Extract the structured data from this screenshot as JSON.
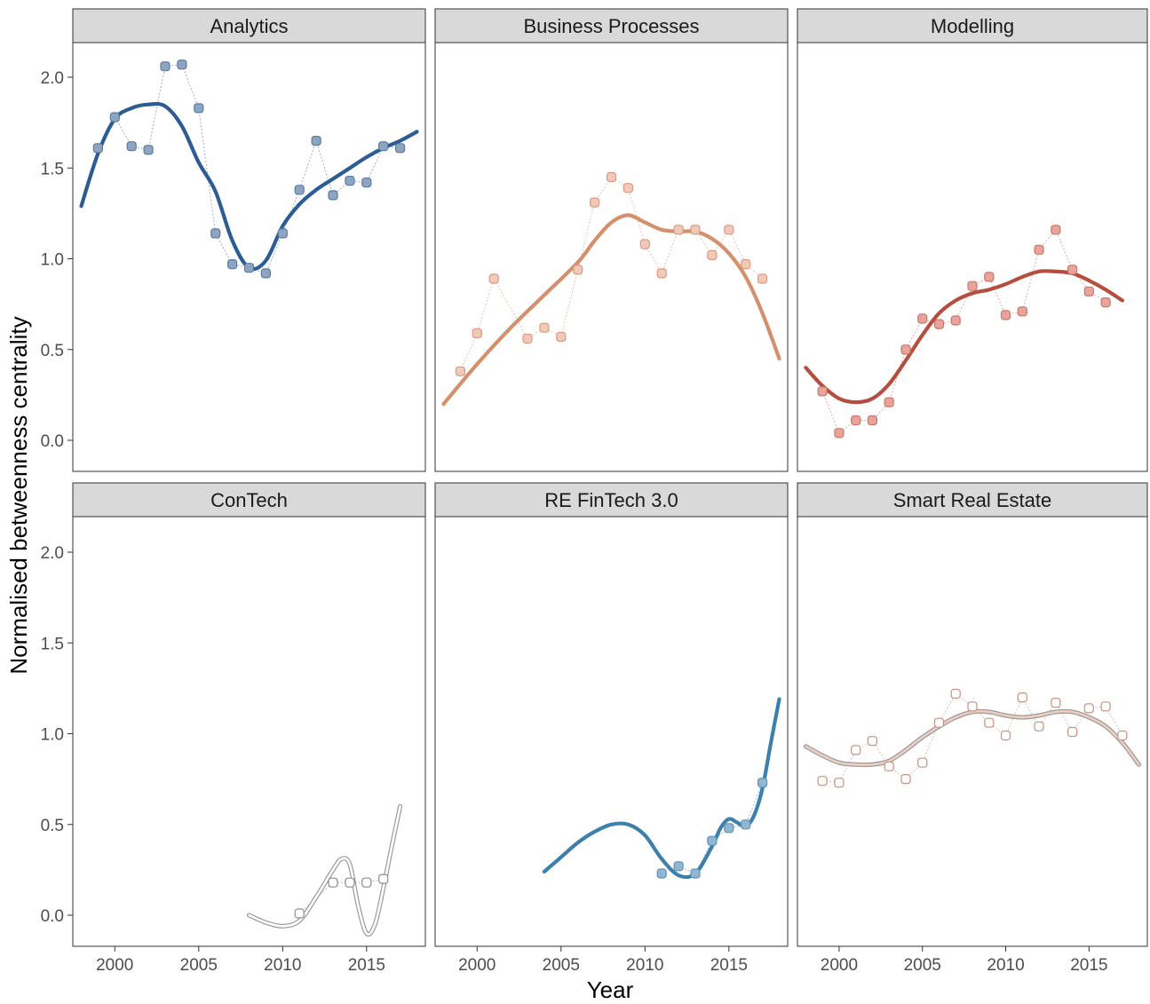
{
  "chart_data": {
    "type": "scatter",
    "layout": "facets 3x2",
    "xlabel": "Year",
    "ylabel": "Normalised betweenness centrality",
    "xlim": [
      1997.5,
      2018.5
    ],
    "ylim": [
      -0.15,
      2.2
    ],
    "x_ticks": [
      2000,
      2005,
      2010,
      2015
    ],
    "x_tick_labels": [
      "2000",
      "2005",
      "2010",
      "2015"
    ],
    "y_ticks": [
      0.0,
      0.5,
      1.0,
      1.5,
      2.0
    ],
    "y_tick_labels": [
      "0.0",
      "0.5",
      "1.0",
      "1.5",
      "2.0"
    ],
    "grid": false,
    "legend": "none",
    "panels": [
      {
        "name": "Analytics",
        "color": "#2b5d94",
        "point_fill": "#8ea5c2",
        "point_stroke": "#5a7ca3",
        "trend_style": "solid",
        "points": [
          [
            1999,
            1.61
          ],
          [
            2000,
            1.78
          ],
          [
            2001,
            1.62
          ],
          [
            2002,
            1.6
          ],
          [
            2003,
            2.06
          ],
          [
            2004,
            2.07
          ],
          [
            2005,
            1.83
          ],
          [
            2006,
            1.14
          ],
          [
            2007,
            0.97
          ],
          [
            2008,
            0.95
          ],
          [
            2009,
            0.92
          ],
          [
            2010,
            1.14
          ],
          [
            2011,
            1.38
          ],
          [
            2012,
            1.65
          ],
          [
            2013,
            1.35
          ],
          [
            2014,
            1.43
          ],
          [
            2015,
            1.42
          ],
          [
            2016,
            1.62
          ],
          [
            2017,
            1.61
          ]
        ],
        "trend": [
          [
            1998,
            1.29
          ],
          [
            1999,
            1.58
          ],
          [
            2000,
            1.77
          ],
          [
            2001,
            1.83
          ],
          [
            2002,
            1.85
          ],
          [
            2003,
            1.84
          ],
          [
            2004,
            1.73
          ],
          [
            2005,
            1.53
          ],
          [
            2006,
            1.37
          ],
          [
            2007,
            1.1
          ],
          [
            2008,
            0.95
          ],
          [
            2009,
            0.99
          ],
          [
            2010,
            1.18
          ],
          [
            2011,
            1.3
          ],
          [
            2012,
            1.38
          ],
          [
            2013,
            1.44
          ],
          [
            2014,
            1.5
          ],
          [
            2015,
            1.56
          ],
          [
            2016,
            1.61
          ],
          [
            2017,
            1.65
          ],
          [
            2018,
            1.7
          ]
        ]
      },
      {
        "name": "Business Processes",
        "color": "#d4906c",
        "point_fill": "#f1c9b8",
        "point_stroke": "#d99a80",
        "trend_style": "solid",
        "points": [
          [
            1999,
            0.38
          ],
          [
            2000,
            0.59
          ],
          [
            2001,
            0.89
          ],
          [
            2003,
            0.56
          ],
          [
            2004,
            0.62
          ],
          [
            2005,
            0.57
          ],
          [
            2006,
            0.94
          ],
          [
            2007,
            1.31
          ],
          [
            2008,
            1.45
          ],
          [
            2009,
            1.39
          ],
          [
            2010,
            1.08
          ],
          [
            2011,
            0.92
          ],
          [
            2012,
            1.16
          ],
          [
            2013,
            1.16
          ],
          [
            2014,
            1.02
          ],
          [
            2015,
            1.16
          ],
          [
            2016,
            0.97
          ],
          [
            2017,
            0.89
          ]
        ],
        "trend": [
          [
            1998,
            0.2
          ],
          [
            2000,
            0.42
          ],
          [
            2002,
            0.62
          ],
          [
            2004,
            0.8
          ],
          [
            2006,
            0.98
          ],
          [
            2007,
            1.1
          ],
          [
            2008,
            1.2
          ],
          [
            2009,
            1.24
          ],
          [
            2010,
            1.2
          ],
          [
            2011,
            1.16
          ],
          [
            2012,
            1.15
          ],
          [
            2013,
            1.15
          ],
          [
            2014,
            1.11
          ],
          [
            2015,
            1.03
          ],
          [
            2016,
            0.9
          ],
          [
            2017,
            0.7
          ],
          [
            2018,
            0.45
          ]
        ]
      },
      {
        "name": "Modelling",
        "color": "#b54e3f",
        "point_fill": "#e8a39a",
        "point_stroke": "#c8776c",
        "trend_style": "solid",
        "points": [
          [
            1999,
            0.27
          ],
          [
            2000,
            0.04
          ],
          [
            2001,
            0.11
          ],
          [
            2002,
            0.11
          ],
          [
            2003,
            0.21
          ],
          [
            2004,
            0.5
          ],
          [
            2005,
            0.67
          ],
          [
            2006,
            0.64
          ],
          [
            2007,
            0.66
          ],
          [
            2008,
            0.85
          ],
          [
            2009,
            0.9
          ],
          [
            2010,
            0.69
          ],
          [
            2011,
            0.71
          ],
          [
            2012,
            1.05
          ],
          [
            2013,
            1.16
          ],
          [
            2014,
            0.94
          ],
          [
            2015,
            0.82
          ],
          [
            2016,
            0.76
          ]
        ],
        "trend": [
          [
            1998,
            0.4
          ],
          [
            1999,
            0.3
          ],
          [
            2000,
            0.23
          ],
          [
            2001,
            0.21
          ],
          [
            2002,
            0.23
          ],
          [
            2003,
            0.31
          ],
          [
            2004,
            0.44
          ],
          [
            2005,
            0.58
          ],
          [
            2006,
            0.7
          ],
          [
            2007,
            0.77
          ],
          [
            2008,
            0.81
          ],
          [
            2009,
            0.83
          ],
          [
            2010,
            0.86
          ],
          [
            2011,
            0.9
          ],
          [
            2012,
            0.93
          ],
          [
            2013,
            0.93
          ],
          [
            2014,
            0.92
          ],
          [
            2015,
            0.88
          ],
          [
            2016,
            0.83
          ],
          [
            2017,
            0.77
          ]
        ]
      },
      {
        "name": "ConTech",
        "color": "#ffffff",
        "point_fill": "#ffffff",
        "point_stroke": "#8c8c8c",
        "trend_style": "double",
        "points": [
          [
            2011,
            0.01
          ],
          [
            2013,
            0.18
          ],
          [
            2014,
            0.18
          ],
          [
            2015,
            0.18
          ],
          [
            2016,
            0.2
          ]
        ],
        "trend": [
          [
            2008,
            0.0
          ],
          [
            2009,
            -0.04
          ],
          [
            2010,
            -0.06
          ],
          [
            2011,
            -0.03
          ],
          [
            2012,
            0.1
          ],
          [
            2013,
            0.25
          ],
          [
            2013.5,
            0.31
          ],
          [
            2014,
            0.28
          ],
          [
            2014.5,
            0.05
          ],
          [
            2015,
            -0.1
          ],
          [
            2015.5,
            -0.05
          ],
          [
            2016,
            0.15
          ],
          [
            2016.5,
            0.38
          ],
          [
            2017,
            0.6
          ]
        ]
      },
      {
        "name": "RE FinTech 3.0",
        "color": "#3d80ab",
        "point_fill": "#92b6d1",
        "point_stroke": "#5f93ba",
        "trend_style": "solid",
        "points": [
          [
            2011,
            0.23
          ],
          [
            2012,
            0.27
          ],
          [
            2013,
            0.23
          ],
          [
            2014,
            0.41
          ],
          [
            2015,
            0.48
          ],
          [
            2016,
            0.5
          ],
          [
            2017,
            0.73
          ]
        ],
        "trend": [
          [
            2004,
            0.24
          ],
          [
            2005,
            0.32
          ],
          [
            2006,
            0.4
          ],
          [
            2007,
            0.46
          ],
          [
            2008,
            0.5
          ],
          [
            2009,
            0.5
          ],
          [
            2010,
            0.44
          ],
          [
            2011,
            0.31
          ],
          [
            2012,
            0.22
          ],
          [
            2013,
            0.23
          ],
          [
            2014,
            0.38
          ],
          [
            2014.5,
            0.48
          ],
          [
            2015,
            0.53
          ],
          [
            2015.5,
            0.51
          ],
          [
            2016,
            0.49
          ],
          [
            2016.5,
            0.55
          ],
          [
            2017,
            0.7
          ],
          [
            2017.5,
            0.95
          ],
          [
            2018,
            1.19
          ]
        ]
      },
      {
        "name": "Smart Real Estate",
        "color": "#efcfc0",
        "point_fill": "#ffffff",
        "point_stroke": "#c98f82",
        "trend_style": "double",
        "points": [
          [
            1999,
            0.74
          ],
          [
            2000,
            0.73
          ],
          [
            2001,
            0.91
          ],
          [
            2002,
            0.96
          ],
          [
            2003,
            0.82
          ],
          [
            2004,
            0.75
          ],
          [
            2005,
            0.84
          ],
          [
            2006,
            1.06
          ],
          [
            2007,
            1.22
          ],
          [
            2008,
            1.15
          ],
          [
            2009,
            1.06
          ],
          [
            2010,
            0.99
          ],
          [
            2011,
            1.2
          ],
          [
            2012,
            1.04
          ],
          [
            2013,
            1.17
          ],
          [
            2014,
            1.01
          ],
          [
            2015,
            1.14
          ],
          [
            2016,
            1.15
          ],
          [
            2017,
            0.99
          ]
        ],
        "trend": [
          [
            1998,
            0.93
          ],
          [
            1999,
            0.88
          ],
          [
            2000,
            0.84
          ],
          [
            2001,
            0.83
          ],
          [
            2002,
            0.83
          ],
          [
            2003,
            0.85
          ],
          [
            2004,
            0.91
          ],
          [
            2005,
            0.98
          ],
          [
            2006,
            1.04
          ],
          [
            2007,
            1.09
          ],
          [
            2008,
            1.12
          ],
          [
            2009,
            1.12
          ],
          [
            2010,
            1.1
          ],
          [
            2011,
            1.09
          ],
          [
            2012,
            1.1
          ],
          [
            2013,
            1.12
          ],
          [
            2014,
            1.12
          ],
          [
            2015,
            1.09
          ],
          [
            2016,
            1.04
          ],
          [
            2017,
            0.95
          ],
          [
            2018,
            0.83
          ]
        ]
      }
    ]
  }
}
